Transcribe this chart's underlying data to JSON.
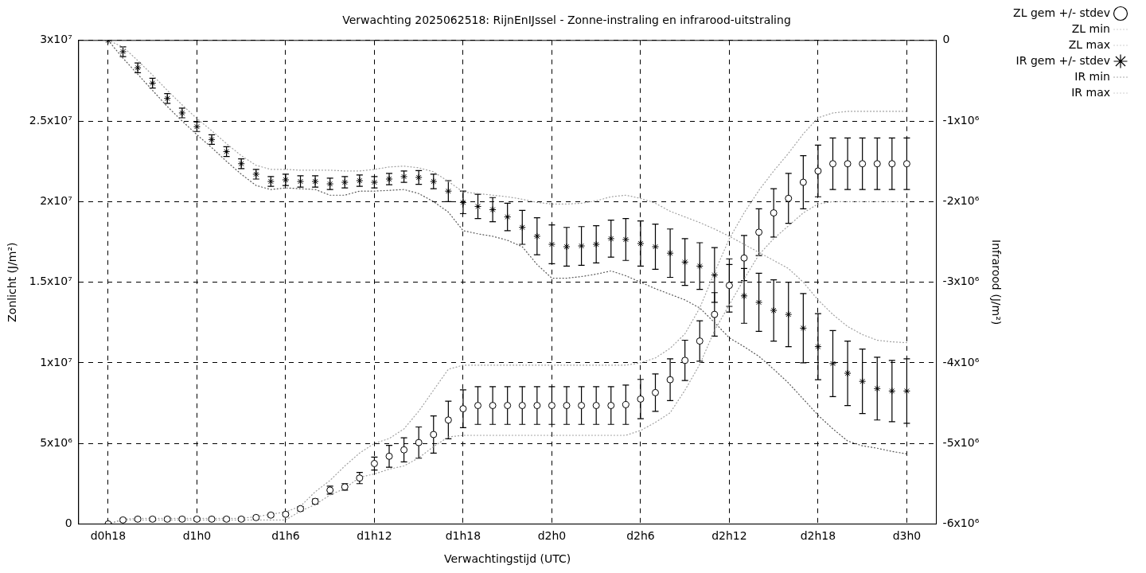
{
  "chart_data": {
    "type": "line",
    "title": "Verwachting 2025062518: RijnEnIJssel - Zonne-instraling en infrarood-uitstraling",
    "xlabel": "Verwachtingstijd (UTC)",
    "ylabel": "Zonlicht (J/m²)",
    "y2label": "Infrarood (J/m²)",
    "categories": [
      "d0h18",
      null,
      null,
      null,
      null,
      null,
      "d1h0",
      null,
      null,
      null,
      null,
      null,
      "d1h6",
      null,
      null,
      null,
      null,
      null,
      "d1h12",
      null,
      null,
      null,
      null,
      null,
      "d1h18",
      null,
      null,
      null,
      null,
      null,
      "d2h0",
      null,
      null,
      null,
      null,
      null,
      "d2h6",
      null,
      null,
      null,
      null,
      null,
      "d2h12",
      null,
      null,
      null,
      null,
      null,
      "d2h18",
      null,
      null,
      null,
      null,
      null,
      "d3h0"
    ],
    "ylim": [
      0,
      30000000
    ],
    "yticks": [
      0,
      {
        "value": 5000000,
        "label": "5x10⁶"
      },
      {
        "value": 10000000,
        "label": "1x10⁷"
      },
      {
        "value": 15000000,
        "label": "1.5x10⁷"
      },
      {
        "value": 20000000,
        "label": "2x10⁷"
      },
      {
        "value": 25000000,
        "label": "2.5x10⁷"
      },
      {
        "value": 30000000,
        "label": "3x10⁷"
      }
    ],
    "y2lim": [
      -6000000,
      0
    ],
    "y2ticks": [
      {
        "value": -6000000,
        "label": "-6x10⁶"
      },
      {
        "value": -5000000,
        "label": "-5x10⁶"
      },
      {
        "value": -4000000,
        "label": "-4x10⁶"
      },
      {
        "value": -3000000,
        "label": "-3x10⁶"
      },
      {
        "value": -2000000,
        "label": "-2x10⁶"
      },
      {
        "value": -1000000,
        "label": "-1x10⁶"
      },
      0
    ],
    "grid": true,
    "legend": "top right",
    "series": [
      {
        "name": "ZL gem +/- stdev",
        "type": "scatter",
        "marker": "circle",
        "color": "#000000",
        "values": [
          0,
          250000.0,
          300000.0,
          300000.0,
          300000.0,
          300000.0,
          300000.0,
          300000.0,
          300000.0,
          300000.0,
          400000.0,
          550000.0,
          600000.0,
          950000.0,
          1400000.0,
          2100000.0,
          2300000.0,
          2850000.0,
          3750000.0,
          4200000.0,
          4600000.0,
          5050000.0,
          5550000.0,
          6450000.0,
          7150000.0,
          7350000.0,
          7350000.0,
          7350000.0,
          7350000.0,
          7350000.0,
          7350000.0,
          7350000.0,
          7350000.0,
          7350000.0,
          7350000.0,
          7400000.0,
          7750000.0,
          8150000.0,
          8950000.0,
          10150000.0,
          11350000.0,
          13000000.0,
          14800000.0,
          16500000.0,
          18100000.0,
          19300000.0,
          20200000.0,
          21200000.0,
          21900000.0,
          22350000.0,
          22350000.0,
          22350000.0,
          22350000.0,
          22350000.0,
          22350000.0
        ],
        "errors": [
          null,
          100000.0,
          100000.0,
          100000.0,
          100000.0,
          100000.0,
          100000.0,
          100000.0,
          100000.0,
          100000.0,
          100000.0,
          100000.0,
          100000.0,
          130000.0,
          150000.0,
          250000.0,
          200000.0,
          350000.0,
          400000.0,
          680000.0,
          750000.0,
          970000.0,
          1150000.0,
          1170000.0,
          1170000.0,
          1170000.0,
          1170000.0,
          1170000.0,
          1170000.0,
          1170000.0,
          1170000.0,
          1170000.0,
          1170000.0,
          1170000.0,
          1170000.0,
          1220000.0,
          1220000.0,
          1160000.0,
          1300000.0,
          1250000.0,
          1250000.0,
          1350000.0,
          1300000.0,
          1400000.0,
          1450000.0,
          1500000.0,
          1550000.0,
          1650000.0,
          1600000.0,
          1600000.0,
          1600000.0,
          1600000.0,
          1600000.0,
          1600000.0,
          1600000.0
        ]
      },
      {
        "name": "ZL min",
        "marker": "none",
        "line_style": "dotted",
        "color": "#a0a0a0",
        "values": [
          0,
          250000.0,
          250000.0,
          250000.0,
          250000.0,
          250000.0,
          250000.0,
          250000.0,
          250000.0,
          250000.0,
          250000.0,
          250000.0,
          250000.0,
          800000.0,
          1200000.0,
          1800000.0,
          2200000.0,
          2900000.0,
          3100000.0,
          3400000.0,
          3600000.0,
          4100000.0,
          4800000.0,
          5400000.0,
          5500000.0,
          5500000.0,
          5500000.0,
          5500000.0,
          5500000.0,
          5500000.0,
          5500000.0,
          5500000.0,
          5500000.0,
          5500000.0,
          5500000.0,
          5500000.0,
          5800000.0,
          6300000.0,
          6900000.0,
          8300000.0,
          9900000.0,
          12000000.0,
          13600000.0,
          15200000.0,
          16700000.0,
          17700000.0,
          18500000.0,
          19300000.0,
          19850000.0,
          20000000.0,
          20000000.0,
          20000000.0,
          20000000.0,
          20000000.0,
          20000000.0
        ]
      },
      {
        "name": "ZL max",
        "marker": "none",
        "line_style": "dotted",
        "color": "#a0a0a0",
        "values": [
          0,
          300000.0,
          350000.0,
          350000.0,
          350000.0,
          350000.0,
          350000.0,
          350000.0,
          350000.0,
          350000.0,
          450000.0,
          600000.0,
          750000.0,
          1100000.0,
          2000000.0,
          2700000.0,
          3600000.0,
          4400000.0,
          5000000.0,
          5300000.0,
          5900000.0,
          7000000.0,
          8300000.0,
          9600000.0,
          9850000.0,
          9850000.0,
          9850000.0,
          9850000.0,
          9850000.0,
          9850000.0,
          9850000.0,
          9850000.0,
          9850000.0,
          9850000.0,
          9850000.0,
          9850000.0,
          10000000.0,
          10300000.0,
          10900000.0,
          11800000.0,
          13400000.0,
          15600000.0,
          17700000.0,
          19300000.0,
          20700000.0,
          21900000.0,
          23000000.0,
          24200000.0,
          25200000.0,
          25500000.0,
          25600000.0,
          25600000.0,
          25600000.0,
          25600000.0,
          25600000.0
        ]
      },
      {
        "name": "IR gem +/- stdev",
        "type": "scatter",
        "marker": "cross",
        "color": "#000000",
        "axis": "y2",
        "values": [
          0,
          -140000.0,
          -340000.0,
          -530000.0,
          -720000.0,
          -900000.0,
          -1070000.0,
          -1230000.0,
          -1380000.0,
          -1530000.0,
          -1660000.0,
          -1750000.0,
          -1730000.0,
          -1750000.0,
          -1750000.0,
          -1780000.0,
          -1760000.0,
          -1740000.0,
          -1760000.0,
          -1720000.0,
          -1690000.0,
          -1700000.0,
          -1750000.0,
          -1870000.0,
          -2010000.0,
          -2060000.0,
          -2100000.0,
          -2190000.0,
          -2320000.0,
          -2430000.0,
          -2530000.0,
          -2560000.0,
          -2550000.0,
          -2530000.0,
          -2460000.0,
          -2470000.0,
          -2520000.0,
          -2560000.0,
          -2640000.0,
          -2750000.0,
          -2800000.0,
          -2910000.0,
          -3040000.0,
          -3170000.0,
          -3250000.0,
          -3350000.0,
          -3400000.0,
          -3570000.0,
          -3800000.0,
          -4010000.0,
          -4130000.0,
          -4230000.0,
          -4320000.0,
          -4350000.0,
          -4350000.0
        ],
        "errors": [
          null,
          60000.0,
          60000.0,
          60000.0,
          60000.0,
          60000.0,
          60000.0,
          60000.0,
          60000.0,
          60000.0,
          60000.0,
          60000.0,
          70000.0,
          70000.0,
          70000.0,
          70000.0,
          70000.0,
          70000.0,
          70000.0,
          70000.0,
          70000.0,
          85000.0,
          90000.0,
          130000.0,
          140000.0,
          150000.0,
          150000.0,
          170000.0,
          210000.0,
          230000.0,
          240000.0,
          240000.0,
          240000.0,
          230000.0,
          230000.0,
          260000.0,
          280000.0,
          280000.0,
          300000.0,
          290000.0,
          290000.0,
          340000.0,
          330000.0,
          340000.0,
          360000.0,
          380000.0,
          400000.0,
          430000.0,
          410000.0,
          410000.0,
          400000.0,
          400000.0,
          390000.0,
          380000.0,
          400000.0
        ]
      },
      {
        "name": "IR min",
        "marker": "none",
        "line_style": "dotted",
        "color": "#555555",
        "axis": "y2",
        "values": [
          0,
          -220000.0,
          -420000.0,
          -620000.0,
          -820000.0,
          -1000000.0,
          -1170000.0,
          -1330000.0,
          -1500000.0,
          -1660000.0,
          -1800000.0,
          -1850000.0,
          -1830000.0,
          -1840000.0,
          -1850000.0,
          -1920000.0,
          -1920000.0,
          -1870000.0,
          -1870000.0,
          -1860000.0,
          -1850000.0,
          -1900000.0,
          -2000000.0,
          -2130000.0,
          -2360000.0,
          -2400000.0,
          -2430000.0,
          -2480000.0,
          -2560000.0,
          -2780000.0,
          -2950000.0,
          -2950000.0,
          -2930000.0,
          -2900000.0,
          -2860000.0,
          -2920000.0,
          -3000000.0,
          -3080000.0,
          -3150000.0,
          -3220000.0,
          -3320000.0,
          -3500000.0,
          -3690000.0,
          -3800000.0,
          -3920000.0,
          -4080000.0,
          -4250000.0,
          -4450000.0,
          -4650000.0,
          -4820000.0,
          -4970000.0,
          -5030000.0,
          -5060000.0,
          -5100000.0,
          -5130000.0
        ]
      },
      {
        "name": "IR max",
        "marker": "none",
        "line_style": "dotted",
        "color": "#a0a0a0",
        "axis": "y2",
        "values": [
          0,
          -80000.0,
          -250000.0,
          -430000.0,
          -620000.0,
          -800000.0,
          -970000.0,
          -1120000.0,
          -1280000.0,
          -1430000.0,
          -1550000.0,
          -1600000.0,
          -1600000.0,
          -1610000.0,
          -1610000.0,
          -1610000.0,
          -1620000.0,
          -1620000.0,
          -1600000.0,
          -1570000.0,
          -1560000.0,
          -1580000.0,
          -1630000.0,
          -1750000.0,
          -1880000.0,
          -1900000.0,
          -1920000.0,
          -1940000.0,
          -1970000.0,
          -2010000.0,
          -2030000.0,
          -2030000.0,
          -2020000.0,
          -1990000.0,
          -1940000.0,
          -1920000.0,
          -1960000.0,
          -2020000.0,
          -2120000.0,
          -2190000.0,
          -2260000.0,
          -2340000.0,
          -2430000.0,
          -2530000.0,
          -2630000.0,
          -2730000.0,
          -2830000.0,
          -3000000.0,
          -3220000.0,
          -3400000.0,
          -3550000.0,
          -3650000.0,
          -3720000.0,
          -3740000.0,
          -3750000.0
        ]
      }
    ]
  }
}
